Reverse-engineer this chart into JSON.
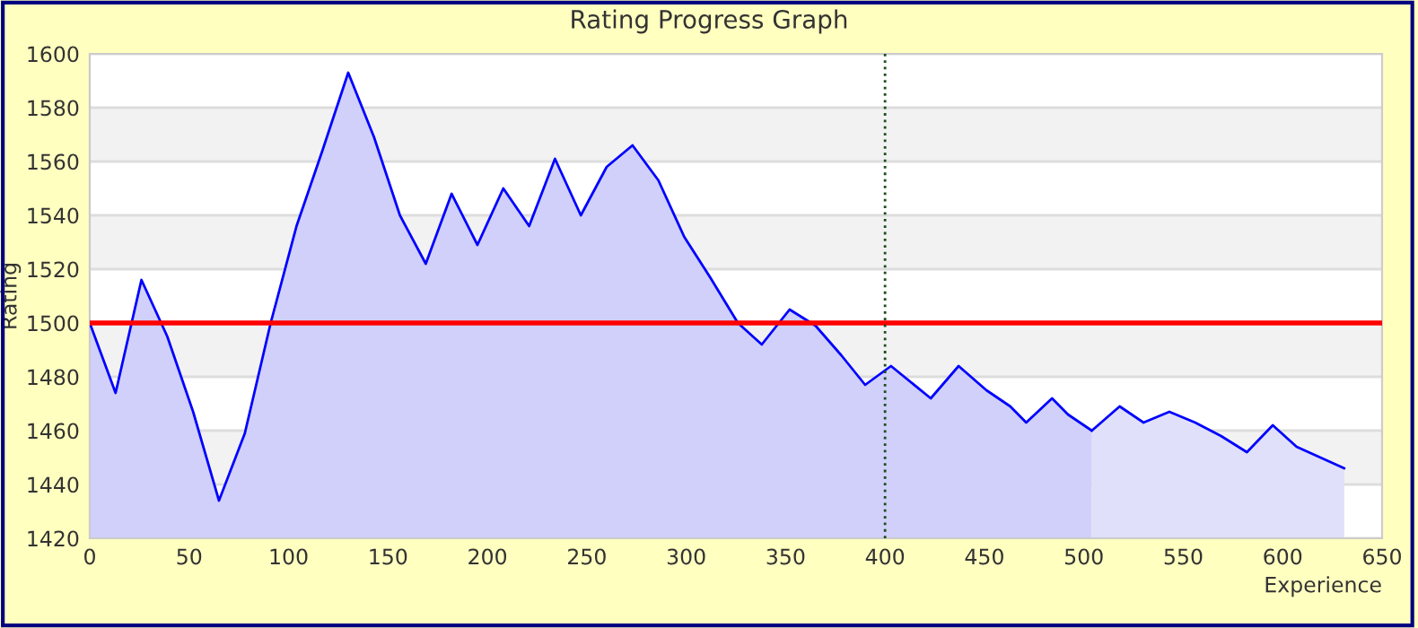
{
  "chart_data": {
    "type": "area",
    "title": "Rating Progress Graph",
    "xlabel": "Experience",
    "ylabel": "Rating",
    "series": [
      {
        "color": "#d0d0fa",
        "x": [
          0,
          13,
          26,
          39,
          52,
          65,
          78,
          91,
          104,
          117,
          130,
          143,
          156,
          169,
          182,
          195,
          208,
          221,
          234,
          247,
          260,
          273,
          286,
          299,
          312,
          326,
          338,
          352,
          365,
          378,
          390,
          403,
          423,
          437,
          451,
          463,
          471,
          484,
          492,
          504
        ],
        "values": [
          1500,
          1474,
          1516,
          1495,
          1467,
          1434,
          1459,
          1500,
          1536,
          1564,
          1593,
          1569,
          1540,
          1522,
          1548,
          1529,
          1550,
          1536,
          1561,
          1540,
          1558,
          1566,
          1553,
          1532,
          1517,
          1500,
          1492,
          1505,
          1499,
          1488,
          1477,
          1484,
          1472,
          1484,
          1475,
          1469,
          1463,
          1472,
          1466,
          1460
        ]
      },
      {
        "color": "#e0e0fa",
        "x": [
          504,
          518,
          530,
          543,
          556,
          569,
          582,
          595,
          607,
          619,
          631
        ],
        "values": [
          1460,
          1469,
          1463,
          1467,
          1463,
          1458,
          1452,
          1462,
          1454,
          1450,
          1446
        ]
      }
    ],
    "xlim": [
      0,
      650
    ],
    "xticks": [
      0,
      50,
      100,
      150,
      200,
      250,
      300,
      350,
      400,
      450,
      500,
      550,
      600,
      650
    ],
    "ylim": [
      1420,
      1600
    ],
    "yticks": [
      1420,
      1440,
      1460,
      1480,
      1500,
      1520,
      1540,
      1560,
      1580,
      1600
    ],
    "ref_lines": [
      {
        "axis": "y",
        "value": 1500,
        "color": "#ff0000",
        "line_style": "solid"
      },
      {
        "axis": "x",
        "value": 400,
        "color": "#1a4d1a",
        "line_style": "dotted"
      }
    ],
    "grid": "y",
    "legend": false
  }
}
